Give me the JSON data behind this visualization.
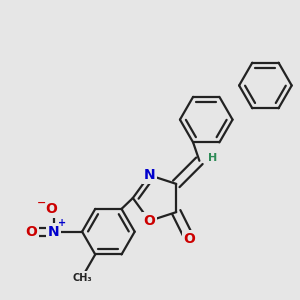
{
  "background_color": "#e6e6e6",
  "bond_color": "#222222",
  "bond_width": 1.6,
  "dbo": 0.018,
  "atom_colors": {
    "N": "#0000cc",
    "O": "#cc0000",
    "H": "#2e8b57",
    "C": "#222222"
  },
  "fs_main": 10,
  "fs_small": 8
}
